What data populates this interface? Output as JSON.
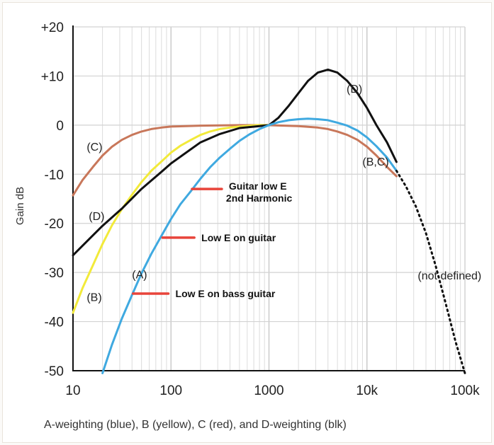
{
  "chart_data": {
    "type": "line",
    "title": "",
    "xlabel": "",
    "ylabel": "Gain dB",
    "caption": "A-weighting (blue), B (yellow), C (red), and D-weighting (blk)",
    "x_scale": "log",
    "xlim": [
      10,
      100000
    ],
    "ylim": [
      -50,
      20
    ],
    "grid": true,
    "x_ticks": [
      {
        "value": 10,
        "label": "10"
      },
      {
        "value": 100,
        "label": "100"
      },
      {
        "value": 1000,
        "label": "1000"
      },
      {
        "value": 10000,
        "label": "10k"
      },
      {
        "value": 100000,
        "label": "100k"
      }
    ],
    "y_ticks": [
      {
        "value": 20,
        "label": "+20"
      },
      {
        "value": 10,
        "label": "+10"
      },
      {
        "value": 0,
        "label": "0"
      },
      {
        "value": -10,
        "label": "-10"
      },
      {
        "value": -20,
        "label": "-20"
      },
      {
        "value": -30,
        "label": "-30"
      },
      {
        "value": -40,
        "label": "-40"
      },
      {
        "value": -50,
        "label": "-50"
      }
    ],
    "colors": {
      "A": "#3fa9e0",
      "B": "#f2ea3a",
      "C": "#c8775a",
      "D": "#111111",
      "marker": "#e8443a"
    },
    "series": [
      {
        "key": "C",
        "label": "(C)",
        "points": [
          [
            10,
            -14.3
          ],
          [
            12.5,
            -11.2
          ],
          [
            16,
            -8.5
          ],
          [
            20,
            -6.2
          ],
          [
            25,
            -4.4
          ],
          [
            31.5,
            -3.0
          ],
          [
            40,
            -2.0
          ],
          [
            50,
            -1.3
          ],
          [
            63,
            -0.8
          ],
          [
            80,
            -0.5
          ],
          [
            100,
            -0.3
          ],
          [
            200,
            -0.1
          ],
          [
            500,
            0
          ],
          [
            1000,
            0
          ],
          [
            2000,
            -0.2
          ],
          [
            3150,
            -0.5
          ],
          [
            4000,
            -0.8
          ],
          [
            5000,
            -1.3
          ],
          [
            6300,
            -2.0
          ],
          [
            8000,
            -3.0
          ],
          [
            10000,
            -4.4
          ],
          [
            12500,
            -6.2
          ],
          [
            16000,
            -8.5
          ],
          [
            20000,
            -10.4
          ]
        ]
      },
      {
        "key": "B",
        "label": "(B)",
        "points": [
          [
            10,
            -38.2
          ],
          [
            12.5,
            -33.2
          ],
          [
            16,
            -28.5
          ],
          [
            20,
            -24.2
          ],
          [
            25,
            -20.4
          ],
          [
            31.5,
            -17.1
          ],
          [
            40,
            -14.2
          ],
          [
            50,
            -11.6
          ],
          [
            63,
            -9.3
          ],
          [
            80,
            -7.4
          ],
          [
            100,
            -5.6
          ],
          [
            125,
            -4.2
          ],
          [
            160,
            -3.0
          ],
          [
            200,
            -2.0
          ],
          [
            250,
            -1.3
          ],
          [
            315,
            -0.8
          ],
          [
            400,
            -0.5
          ],
          [
            500,
            -0.3
          ],
          [
            630,
            -0.1
          ],
          [
            800,
            0
          ],
          [
            1000,
            0
          ]
        ]
      },
      {
        "key": "D",
        "label": "(D)",
        "points": [
          [
            10,
            -26.5
          ],
          [
            20,
            -20.5
          ],
          [
            31.5,
            -17.0
          ],
          [
            50,
            -13.0
          ],
          [
            80,
            -9.5
          ],
          [
            100,
            -7.8
          ],
          [
            200,
            -3.5
          ],
          [
            315,
            -1.8
          ],
          [
            500,
            -0.6
          ],
          [
            800,
            -0.2
          ],
          [
            1000,
            0
          ],
          [
            1250,
            1.5
          ],
          [
            1600,
            4.0
          ],
          [
            2000,
            6.5
          ],
          [
            2500,
            9.0
          ],
          [
            3150,
            10.7
          ],
          [
            4000,
            11.3
          ],
          [
            5000,
            10.7
          ],
          [
            6300,
            9.0
          ],
          [
            8000,
            6.5
          ],
          [
            10000,
            3.5
          ],
          [
            12500,
            0
          ],
          [
            16000,
            -3.5
          ],
          [
            20000,
            -7.5
          ]
        ]
      },
      {
        "key": "A",
        "label": "(A)",
        "points": [
          [
            20,
            -50.5
          ],
          [
            25,
            -44.7
          ],
          [
            31.5,
            -39.4
          ],
          [
            40,
            -34.6
          ],
          [
            50,
            -30.2
          ],
          [
            63,
            -26.2
          ],
          [
            80,
            -22.5
          ],
          [
            100,
            -19.1
          ],
          [
            125,
            -16.1
          ],
          [
            160,
            -13.4
          ],
          [
            200,
            -10.9
          ],
          [
            250,
            -8.6
          ],
          [
            315,
            -6.6
          ],
          [
            400,
            -4.8
          ],
          [
            500,
            -3.2
          ],
          [
            630,
            -1.9
          ],
          [
            800,
            -0.8
          ],
          [
            1000,
            0
          ],
          [
            1250,
            0.6
          ],
          [
            1600,
            1.0
          ],
          [
            2000,
            1.2
          ],
          [
            2500,
            1.3
          ],
          [
            3150,
            1.2
          ],
          [
            4000,
            1.0
          ],
          [
            5000,
            0.5
          ],
          [
            6300,
            -0.1
          ],
          [
            8000,
            -1.1
          ],
          [
            10000,
            -2.5
          ],
          [
            12500,
            -4.3
          ],
          [
            16000,
            -6.6
          ],
          [
            20000,
            -9.3
          ]
        ]
      }
    ],
    "undefined_extension": {
      "label": "(not defined)",
      "points": [
        [
          20000,
          -9.3
        ],
        [
          25000,
          -12.5
        ],
        [
          31500,
          -16.5
        ],
        [
          40000,
          -22
        ],
        [
          50000,
          -28.5
        ],
        [
          63000,
          -36
        ],
        [
          80000,
          -44
        ],
        [
          100000,
          -50.5
        ]
      ]
    },
    "curve_labels": [
      {
        "text": "(C)",
        "x": 13.8,
        "y": -5.2
      },
      {
        "text": "(B)",
        "x": 13.8,
        "y": -35.8
      },
      {
        "text": "(D)",
        "x": 14.5,
        "y": -19.3
      },
      {
        "text": "(A)",
        "x": 40,
        "y": -31.2
      },
      {
        "text": "(D)",
        "x": 6200,
        "y": 6.6
      },
      {
        "text": "(B,C)",
        "x": 9000,
        "y": -8.2
      },
      {
        "text": "(not defined)",
        "x": 33000,
        "y": -31.4
      }
    ],
    "annotations": [
      {
        "lines": [
          "Guitar low E",
          "2nd Harmonic"
        ],
        "marker_x1": 164,
        "marker_x2": 330,
        "marker_y": -13.0
      },
      {
        "lines": [
          "Low E on guitar"
        ],
        "marker_x1": 82,
        "marker_x2": 173,
        "marker_y": -22.9
      },
      {
        "lines": [
          "Low E on bass guitar"
        ],
        "marker_x1": 41,
        "marker_x2": 94,
        "marker_y": -34.3
      }
    ]
  }
}
